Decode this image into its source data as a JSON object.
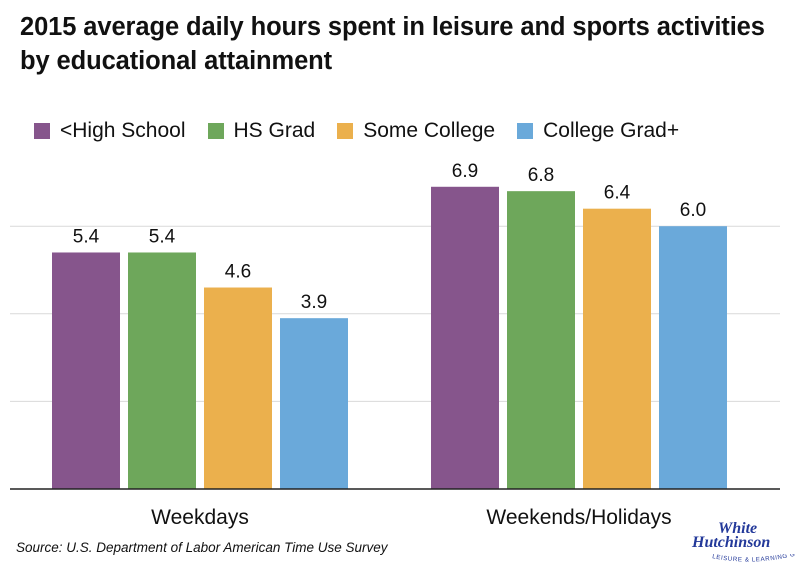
{
  "chart_data": {
    "type": "bar",
    "title": "2015 average daily hours spent in leisure and sports activities by educational attainment",
    "categories": [
      "Weekdays",
      "Weekends/Holidays"
    ],
    "series": [
      {
        "name": "<High School",
        "color": "#86558c",
        "values": [
          5.4,
          6.9
        ]
      },
      {
        "name": "HS Grad",
        "color": "#6ea75b",
        "values": [
          5.4,
          6.8
        ]
      },
      {
        "name": "Some College",
        "color": "#ebb04d",
        "values": [
          4.6,
          6.4
        ]
      },
      {
        "name": "College Grad+",
        "color": "#6aa9da",
        "values": [
          3.9,
          6.0
        ]
      }
    ],
    "ylim": [
      0,
      8
    ],
    "gridlines": [
      2,
      4,
      6
    ],
    "grid": true,
    "legend_position": "top",
    "xlabel": "",
    "ylabel": ""
  },
  "source": "Source: U.S. Department of Labor American Time Use Survey",
  "logo": {
    "line1": "White",
    "line2": "Hutchinson",
    "tagline": "LEISURE & LEARNING GROUP",
    "color": "#23399a"
  }
}
